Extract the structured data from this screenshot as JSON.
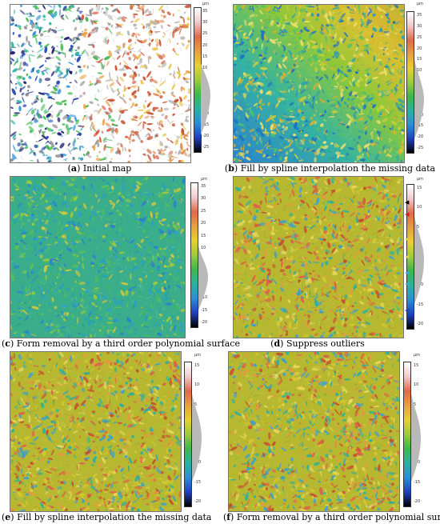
{
  "unit": "µm",
  "panels": [
    {
      "letter": "a",
      "caption": "Initial map",
      "ticks": [
        "35",
        "30",
        "25",
        "20",
        "15",
        "10",
        "5",
        "0",
        "-5",
        "-10",
        "-15",
        "-20",
        "-25"
      ],
      "style": "initial"
    },
    {
      "letter": "b",
      "caption": "Fill by spline interpolation the missing data",
      "ticks": [
        "35",
        "30",
        "25",
        "20",
        "15",
        "10",
        "5",
        "0",
        "-5",
        "-10",
        "-15",
        "-20",
        "-25"
      ],
      "style": "gradient"
    },
    {
      "letter": "c",
      "caption": "Form removal by a third order polynomial surface",
      "ticks": [
        "35",
        "30",
        "25",
        "20",
        "15",
        "10",
        "5",
        "0",
        "-5",
        "-10",
        "-15",
        "-20"
      ],
      "style": "flat"
    },
    {
      "letter": "d",
      "caption": "Suppress outliers",
      "ticks": [
        "15",
        "10",
        "5",
        "0",
        "-5",
        "-10",
        "-15",
        "-20"
      ],
      "style": "rough"
    },
    {
      "letter": "e",
      "caption": "Fill by spline interpolation the missing data",
      "ticks": [
        "15",
        "10",
        "5",
        "0",
        "-5",
        "-10",
        "-15",
        "-20"
      ],
      "style": "rough"
    },
    {
      "letter": "f",
      "caption": "Form removal by a third order polynomial surface",
      "ticks": [
        "15",
        "10",
        "5",
        "0",
        "-5",
        "-10",
        "-15",
        "-20"
      ],
      "style": "rough"
    }
  ],
  "colors": {
    "scale": [
      "#ffffff",
      "#f1c8c8",
      "#e06a4a",
      "#e8a040",
      "#e8d030",
      "#9ccc3a",
      "#3cb84a",
      "#29b2a0",
      "#2a8fd8",
      "#2040c0",
      "#000000"
    ]
  }
}
